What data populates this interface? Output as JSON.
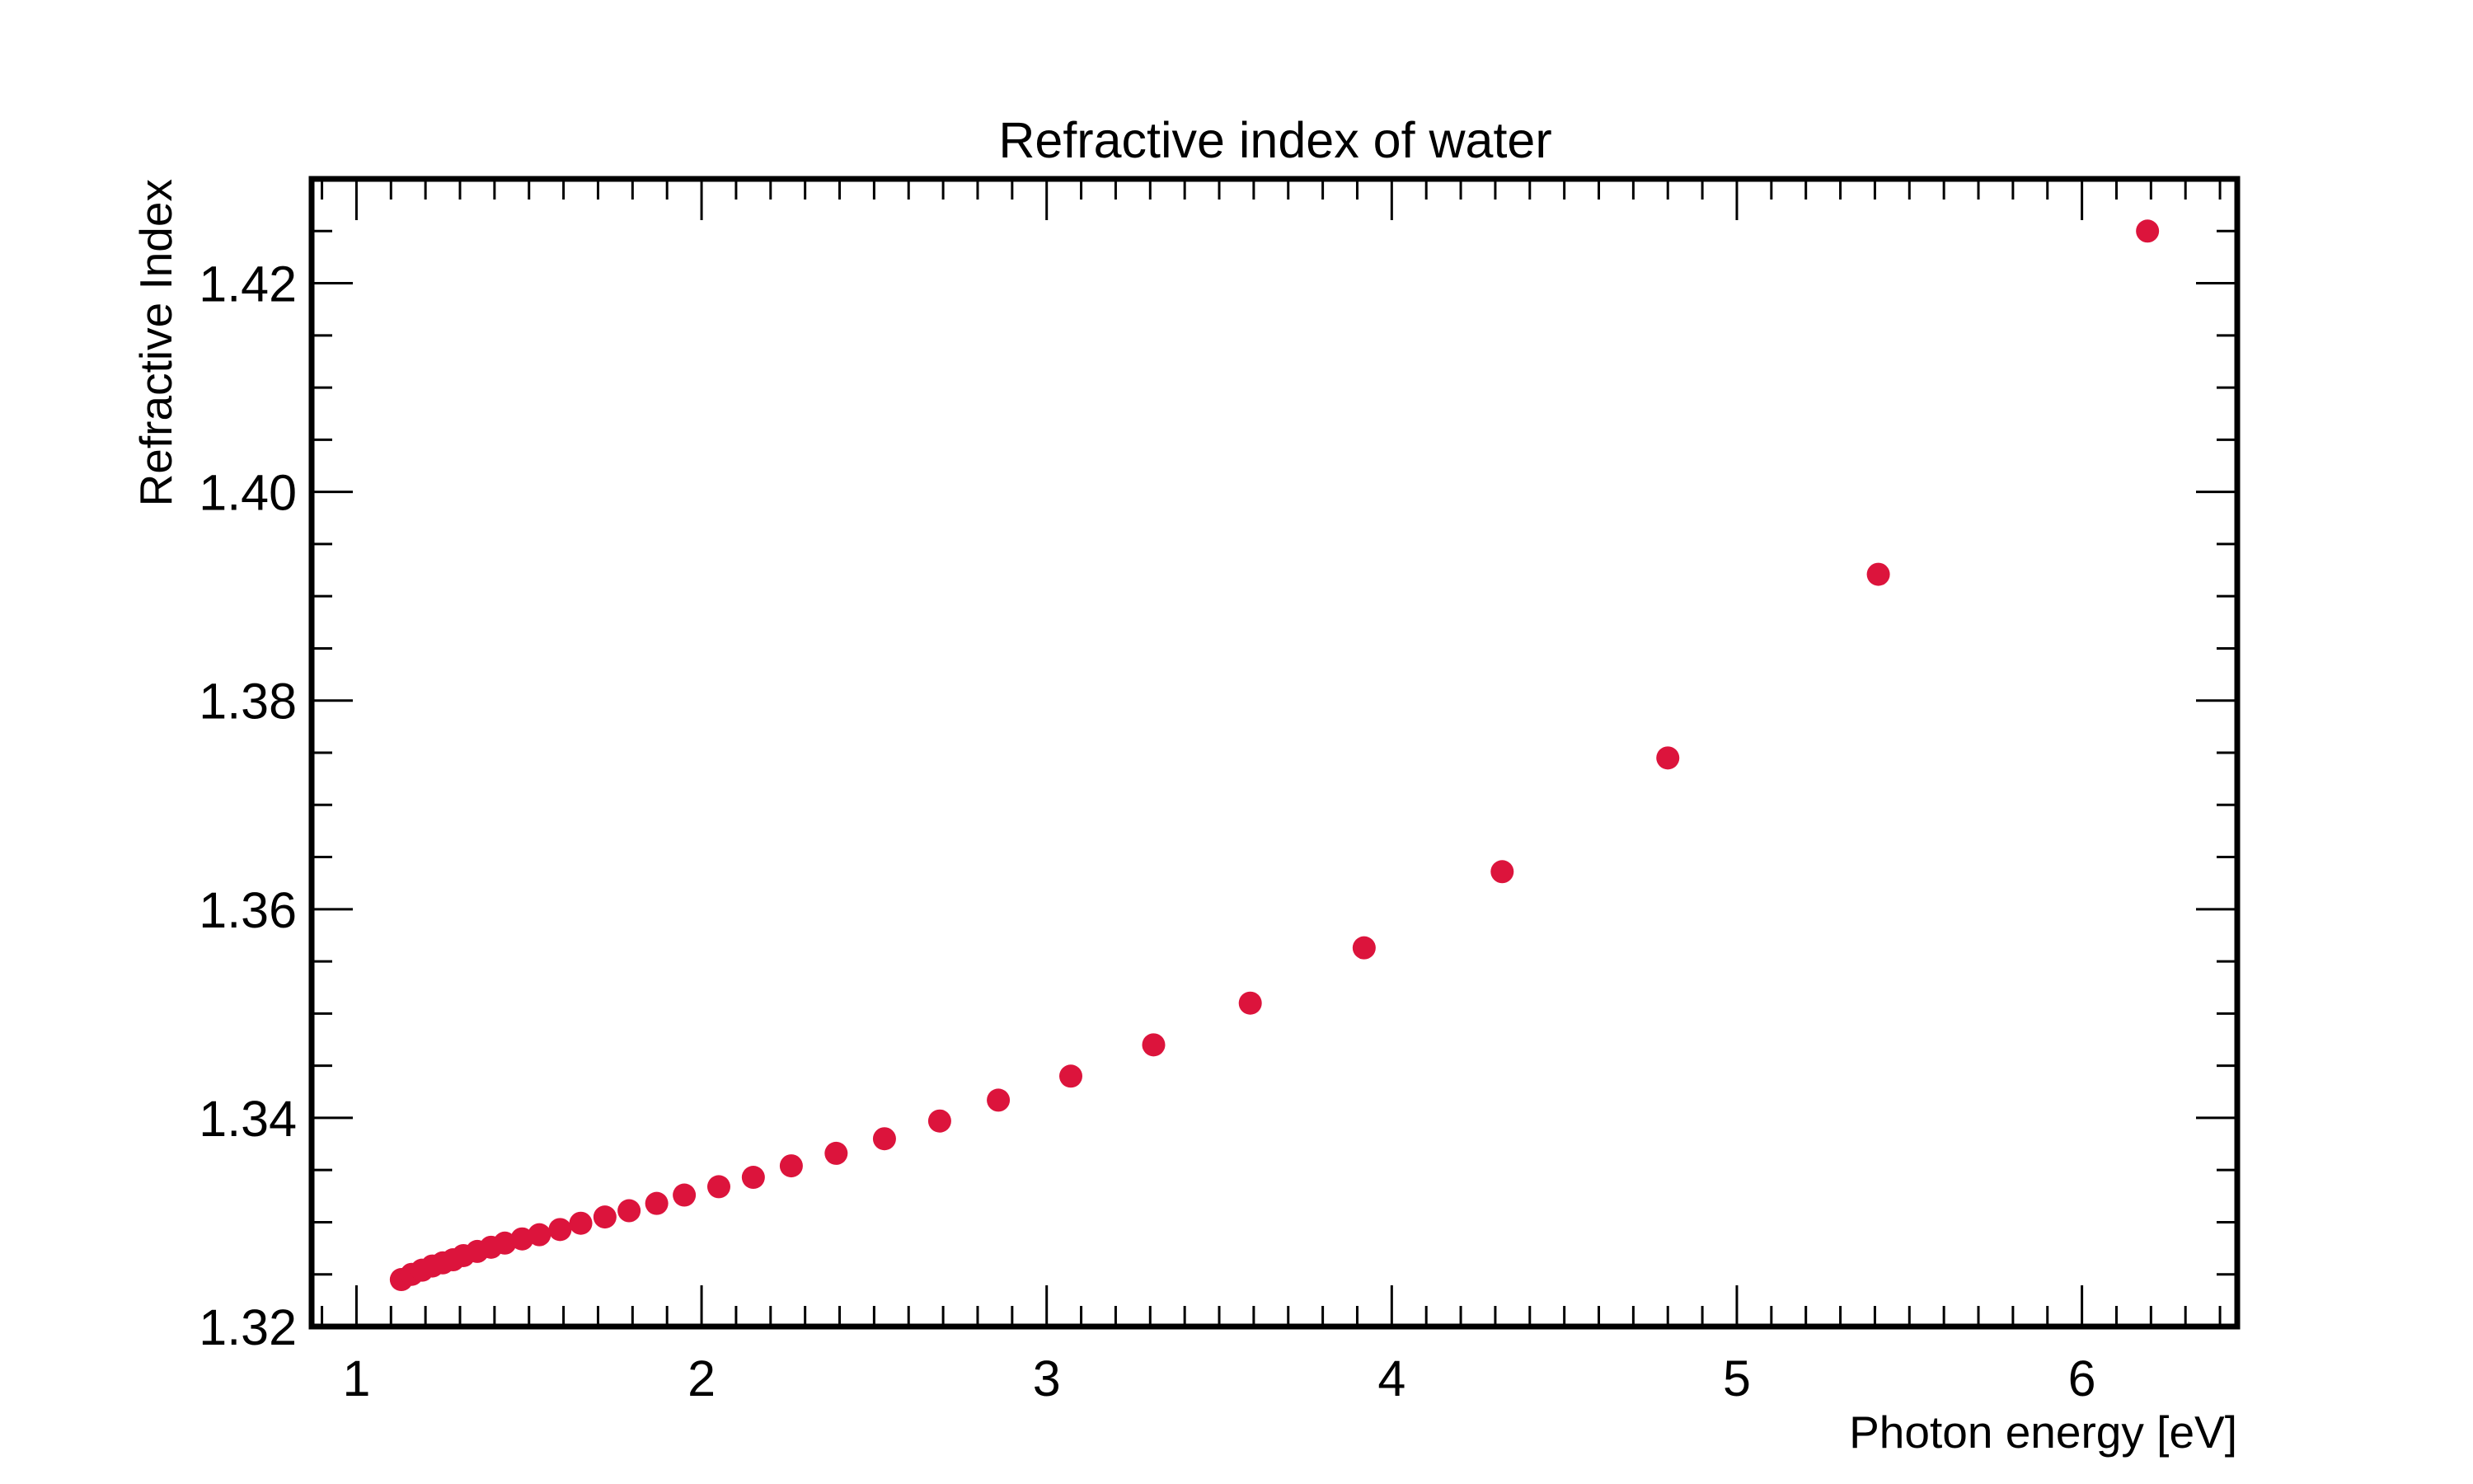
{
  "chart_data": {
    "type": "scatter",
    "title": "Refractive index of water",
    "xlabel": "Photon energy [eV]",
    "ylabel": "Refractive Index",
    "xlim": [
      0.87,
      6.45
    ],
    "ylim": [
      1.32,
      1.43
    ],
    "x_ticks": [
      1,
      2,
      3,
      4,
      5,
      6
    ],
    "x_tick_labels": [
      "1",
      "2",
      "3",
      "4",
      "5",
      "6"
    ],
    "y_ticks": [
      1.32,
      1.34,
      1.36,
      1.38,
      1.4,
      1.42
    ],
    "y_tick_labels": [
      "1.32",
      "1.34",
      "1.36",
      "1.38",
      "1.40",
      "1.42"
    ],
    "grid": false,
    "marker_color": "#dc143c",
    "series": [
      {
        "name": "",
        "points": [
          {
            "x": 1.13,
            "y": 1.3245
          },
          {
            "x": 1.16,
            "y": 1.325
          },
          {
            "x": 1.19,
            "y": 1.3254
          },
          {
            "x": 1.22,
            "y": 1.3258
          },
          {
            "x": 1.25,
            "y": 1.3261
          },
          {
            "x": 1.28,
            "y": 1.3264
          },
          {
            "x": 1.31,
            "y": 1.3268
          },
          {
            "x": 1.35,
            "y": 1.3272
          },
          {
            "x": 1.39,
            "y": 1.3276
          },
          {
            "x": 1.43,
            "y": 1.328
          },
          {
            "x": 1.48,
            "y": 1.3284
          },
          {
            "x": 1.53,
            "y": 1.3288
          },
          {
            "x": 1.59,
            "y": 1.3293
          },
          {
            "x": 1.65,
            "y": 1.3299
          },
          {
            "x": 1.72,
            "y": 1.3305
          },
          {
            "x": 1.79,
            "y": 1.3311
          },
          {
            "x": 1.87,
            "y": 1.3318
          },
          {
            "x": 1.95,
            "y": 1.3326
          },
          {
            "x": 2.05,
            "y": 1.3334
          },
          {
            "x": 2.15,
            "y": 1.3343
          },
          {
            "x": 2.26,
            "y": 1.3354
          },
          {
            "x": 2.39,
            "y": 1.3366
          },
          {
            "x": 2.53,
            "y": 1.338
          },
          {
            "x": 2.69,
            "y": 1.3397
          },
          {
            "x": 2.86,
            "y": 1.3417
          },
          {
            "x": 3.07,
            "y": 1.344
          },
          {
            "x": 3.31,
            "y": 1.347
          },
          {
            "x": 3.59,
            "y": 1.351
          },
          {
            "x": 3.92,
            "y": 1.3563
          },
          {
            "x": 4.32,
            "y": 1.3636
          },
          {
            "x": 4.8,
            "y": 1.3745
          },
          {
            "x": 5.41,
            "y": 1.3921
          },
          {
            "x": 6.19,
            "y": 1.425
          }
        ]
      }
    ]
  }
}
